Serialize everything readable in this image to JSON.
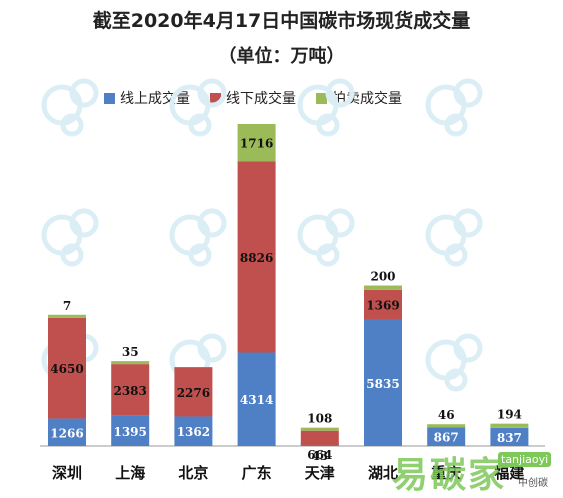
{
  "chart_data": {
    "type": "bar",
    "stacked": true,
    "title": "截至2020年4月17日中国碳市场现货成交量",
    "subtitle": "（单位：万吨）",
    "categories": [
      "深圳",
      "上海",
      "北京",
      "广东",
      "天津",
      "湖北",
      "重庆",
      "福建"
    ],
    "series": [
      {
        "name": "线上成交量",
        "color": "#4f7fc4",
        "values": [
          1266,
          1395,
          1362,
          4314,
          43,
          5835,
          867,
          837
        ]
      },
      {
        "name": "线下成交量",
        "color": "#c0504d",
        "values": [
          4650,
          2383,
          2276,
          8826,
          664,
          1369,
          0,
          0
        ]
      },
      {
        "name": "拍卖成交量",
        "color": "#9bbb59",
        "values": [
          7,
          35,
          0,
          1716,
          108,
          200,
          46,
          194
        ]
      }
    ],
    "data_labels": [
      [
        "1266",
        "4650",
        "7"
      ],
      [
        "1395",
        "2383",
        "35"
      ],
      [
        "1362",
        "2276",
        ""
      ],
      [
        "4314",
        "8826",
        "1716"
      ],
      [
        "43",
        "664",
        "108"
      ],
      [
        "5835",
        "1369",
        "200"
      ],
      [
        "867",
        "",
        "46"
      ],
      [
        "837",
        "",
        "194"
      ]
    ],
    "legend_position": "top",
    "grid": false,
    "ylim": [
      0,
      15000
    ]
  },
  "watermark": {
    "site_text": "易碳家",
    "domain_text": "tanjiaoyi",
    "account_text": "中创碳"
  }
}
